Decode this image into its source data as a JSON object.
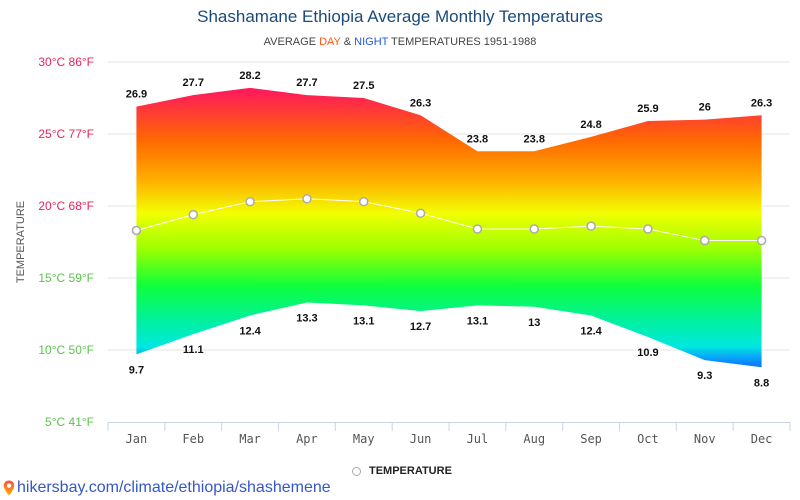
{
  "header": {
    "title": "Shashamane Ethiopia Average Monthly Temperatures",
    "subtitle_prefix": "AVERAGE ",
    "subtitle_day": "DAY",
    "subtitle_amp": " & ",
    "subtitle_night": "NIGHT",
    "subtitle_suffix": " TEMPERATURES 1951-1988"
  },
  "legend": {
    "label": "TEMPERATURE"
  },
  "source": {
    "text": "hikersbay.com/climate/ethiopia/shashemene",
    "icon": "map-pin-icon"
  },
  "colors": {
    "title": "#1a4a7a",
    "day": "#ff5a1f",
    "night": "#2356e8",
    "warm_tick": "#e8245a",
    "cool_tick": "#5cc34c"
  },
  "chart_data": {
    "type": "area",
    "title": "Shashamane Ethiopia Average Monthly Temperatures",
    "subtitle": "AVERAGE DAY & NIGHT TEMPERATURES 1951-1988",
    "xlabel": "",
    "ylabel": "TEMPERATURE",
    "categories": [
      "Jan",
      "Feb",
      "Mar",
      "Apr",
      "May",
      "Jun",
      "Jul",
      "Aug",
      "Sep",
      "Oct",
      "Nov",
      "Dec"
    ],
    "ylim": [
      5,
      30
    ],
    "yticks": [
      {
        "value": 30,
        "label": "30°C 86°F"
      },
      {
        "value": 25,
        "label": "25°C 77°F"
      },
      {
        "value": 20,
        "label": "20°C 68°F"
      },
      {
        "value": 15,
        "label": "15°C 59°F"
      },
      {
        "value": 10,
        "label": "10°C 50°F"
      },
      {
        "value": 5,
        "label": "5°C 41°F"
      }
    ],
    "grid": true,
    "legend_position": "bottom",
    "series": [
      {
        "name": "Day",
        "values": [
          26.9,
          27.7,
          28.2,
          27.7,
          27.5,
          26.3,
          23.8,
          23.8,
          24.8,
          25.9,
          26,
          26.3
        ]
      },
      {
        "name": "Night",
        "values": [
          9.7,
          11.1,
          12.4,
          13.3,
          13.1,
          12.7,
          13.1,
          13,
          12.4,
          10.9,
          9.3,
          8.8
        ]
      },
      {
        "name": "TEMPERATURE",
        "values": [
          18.3,
          19.4,
          20.3,
          20.5,
          20.3,
          19.5,
          18.4,
          18.4,
          18.6,
          18.4,
          17.6,
          17.6
        ]
      }
    ],
    "day_labels": [
      "26.9",
      "27.7",
      "28.2",
      "27.7",
      "27.5",
      "26.3",
      "23.8",
      "23.8",
      "24.8",
      "25.9",
      "26",
      "26.3"
    ],
    "night_labels": [
      "9.7",
      "11.1",
      "12.4",
      "13.3",
      "13.1",
      "12.7",
      "13.1",
      "13",
      "12.4",
      "10.9",
      "9.3",
      "8.8"
    ]
  }
}
